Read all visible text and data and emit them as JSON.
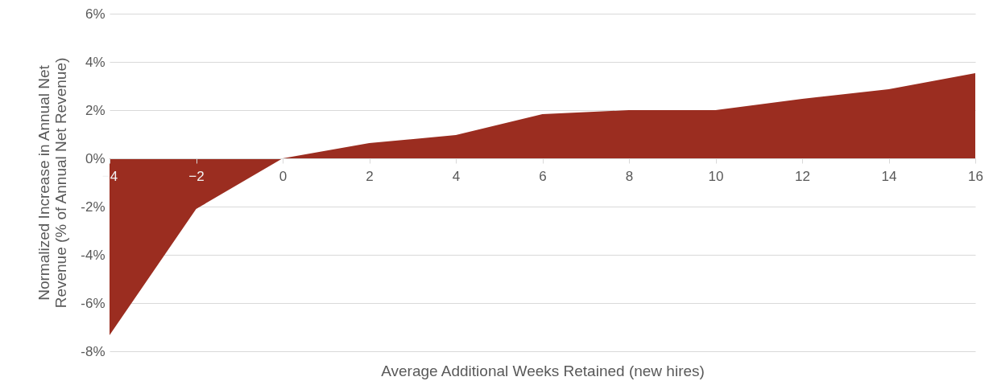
{
  "chart_data": {
    "type": "area",
    "xlabel": "Average Additional Weeks Retained (new hires)",
    "ylabel": "Normalized Increase in Annual Net Revenue (% of Annual Net Revenue)",
    "x": [
      -4,
      -2,
      0,
      2,
      4,
      6,
      8,
      10,
      12,
      14,
      16
    ],
    "series": [
      {
        "color": "#9b2d20",
        "values": [
          -7.33,
          -2.1,
          0,
          0.63,
          0.97,
          1.83,
          2.0,
          2.0,
          2.47,
          2.87,
          3.53
        ]
      }
    ],
    "xlim": [
      -4,
      16
    ],
    "xticks": [
      -4,
      -2,
      0,
      2,
      4,
      6,
      8,
      10,
      12,
      14,
      16
    ],
    "ylim": [
      -8,
      6
    ],
    "yticks": [
      {
        "value": -8,
        "label": "-8%"
      },
      {
        "value": -6,
        "label": "-6%"
      },
      {
        "value": -4,
        "label": "-4%"
      },
      {
        "value": -2,
        "label": "-2%"
      },
      {
        "value": 0,
        "label": "0%"
      },
      {
        "value": 2,
        "label": "2%"
      },
      {
        "value": 4,
        "label": "4%"
      },
      {
        "value": 6,
        "label": "6%"
      }
    ],
    "grid": "y"
  }
}
